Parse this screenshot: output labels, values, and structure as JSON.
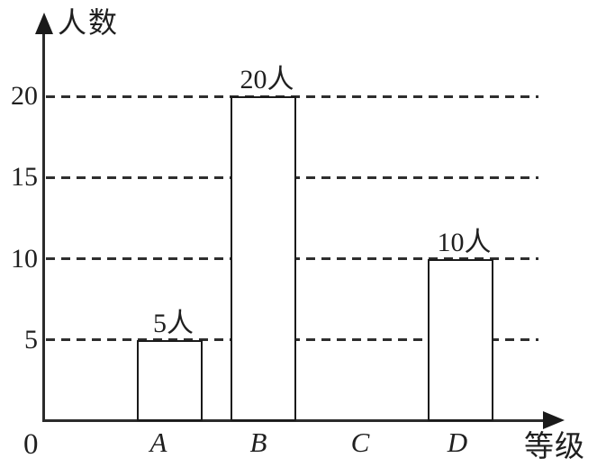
{
  "chart_data": {
    "type": "bar",
    "title": "",
    "categories": [
      "A",
      "B",
      "C",
      "D"
    ],
    "values": [
      5,
      20,
      0,
      10
    ],
    "bar_labels": [
      "5人",
      "20人",
      "",
      "10人"
    ],
    "xlabel": "等级",
    "ylabel": "人数",
    "origin_label": "0",
    "yticks": [
      5,
      10,
      15,
      20
    ],
    "ylim": [
      0,
      24
    ],
    "grid": "horizontal-dashed",
    "legend": "none",
    "bar_fill": "#ffffff",
    "stroke_color": "#1a1a1a",
    "background": "#ffffff"
  }
}
